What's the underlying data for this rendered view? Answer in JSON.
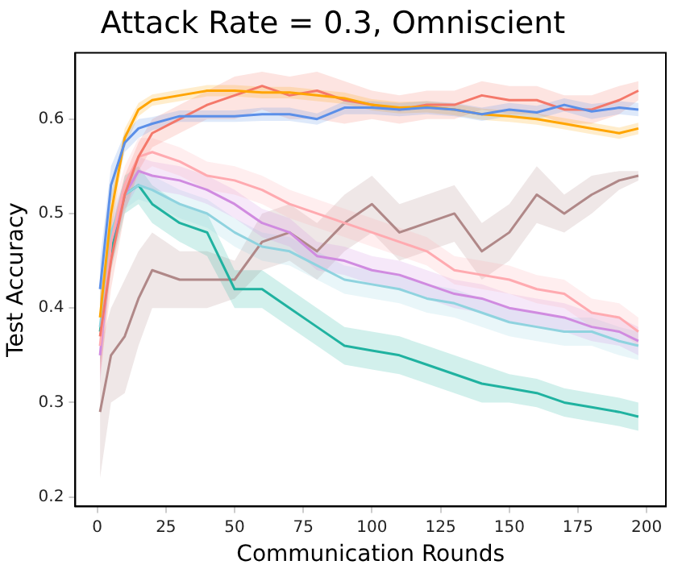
{
  "chart_data": {
    "type": "line",
    "title": "Attack Rate = 0.3, Omniscient",
    "xlabel": "Communication Rounds",
    "ylabel": "Test Accuracy",
    "x": [
      1,
      5,
      10,
      15,
      20,
      30,
      40,
      50,
      60,
      70,
      80,
      90,
      100,
      110,
      120,
      130,
      140,
      150,
      160,
      170,
      180,
      190,
      197
    ],
    "xlim": [
      -8,
      207
    ],
    "ylim": [
      0.19,
      0.67
    ],
    "xticks": [
      0,
      25,
      50,
      75,
      100,
      125,
      150,
      175,
      200
    ],
    "yticks": [
      0.2,
      0.3,
      0.4,
      0.5,
      0.6
    ],
    "grid": false,
    "legend": false,
    "marker": "none",
    "line_style": "solid",
    "series": [
      {
        "color": "#5b8fe8",
        "values": [
          0.42,
          0.53,
          0.575,
          0.59,
          0.595,
          0.603,
          0.603,
          0.603,
          0.605,
          0.605,
          0.6,
          0.612,
          0.612,
          0.61,
          0.612,
          0.61,
          0.605,
          0.61,
          0.607,
          0.615,
          0.608,
          0.612,
          0.61
        ],
        "lower": [
          0.39,
          0.51,
          0.565,
          0.58,
          0.588,
          0.597,
          0.597,
          0.597,
          0.598,
          0.598,
          0.594,
          0.605,
          0.605,
          0.603,
          0.605,
          0.603,
          0.598,
          0.603,
          0.6,
          0.608,
          0.6,
          0.605,
          0.603
        ],
        "upper": [
          0.45,
          0.55,
          0.585,
          0.6,
          0.602,
          0.609,
          0.609,
          0.609,
          0.612,
          0.612,
          0.606,
          0.619,
          0.619,
          0.617,
          0.619,
          0.617,
          0.612,
          0.617,
          0.614,
          0.622,
          0.616,
          0.619,
          0.617
        ]
      },
      {
        "color": "#ffa500",
        "values": [
          0.39,
          0.5,
          0.58,
          0.61,
          0.62,
          0.625,
          0.63,
          0.63,
          0.628,
          0.628,
          0.625,
          0.622,
          0.615,
          0.612,
          0.613,
          0.61,
          0.605,
          0.603,
          0.6,
          0.595,
          0.59,
          0.585,
          0.59
        ],
        "lower": [
          0.36,
          0.48,
          0.57,
          0.603,
          0.614,
          0.619,
          0.624,
          0.624,
          0.622,
          0.622,
          0.619,
          0.616,
          0.609,
          0.606,
          0.607,
          0.604,
          0.599,
          0.597,
          0.594,
          0.589,
          0.584,
          0.579,
          0.584
        ],
        "upper": [
          0.42,
          0.52,
          0.59,
          0.617,
          0.626,
          0.631,
          0.636,
          0.636,
          0.634,
          0.634,
          0.631,
          0.628,
          0.621,
          0.618,
          0.619,
          0.616,
          0.611,
          0.609,
          0.606,
          0.601,
          0.596,
          0.591,
          0.596
        ]
      },
      {
        "color": "#f4786a",
        "values": [
          0.37,
          0.45,
          0.52,
          0.56,
          0.585,
          0.6,
          0.615,
          0.625,
          0.635,
          0.625,
          0.63,
          0.62,
          0.615,
          0.61,
          0.615,
          0.615,
          0.625,
          0.62,
          0.62,
          0.61,
          0.61,
          0.62,
          0.63
        ],
        "lower": [
          0.33,
          0.42,
          0.5,
          0.545,
          0.57,
          0.585,
          0.6,
          0.6,
          0.61,
          0.6,
          0.6,
          0.595,
          0.6,
          0.595,
          0.6,
          0.6,
          0.61,
          0.605,
          0.605,
          0.595,
          0.595,
          0.605,
          0.62
        ],
        "upper": [
          0.41,
          0.48,
          0.54,
          0.575,
          0.6,
          0.615,
          0.63,
          0.645,
          0.65,
          0.645,
          0.65,
          0.64,
          0.63,
          0.625,
          0.63,
          0.63,
          0.64,
          0.635,
          0.635,
          0.625,
          0.625,
          0.635,
          0.64
        ]
      },
      {
        "color": "#ffaab0",
        "values": [
          0.36,
          0.47,
          0.53,
          0.56,
          0.565,
          0.555,
          0.54,
          0.535,
          0.525,
          0.51,
          0.5,
          0.49,
          0.48,
          0.47,
          0.46,
          0.44,
          0.435,
          0.43,
          0.42,
          0.415,
          0.395,
          0.39,
          0.375
        ],
        "lower": [
          0.32,
          0.44,
          0.51,
          0.54,
          0.55,
          0.54,
          0.525,
          0.52,
          0.51,
          0.495,
          0.485,
          0.475,
          0.465,
          0.455,
          0.445,
          0.425,
          0.42,
          0.415,
          0.405,
          0.4,
          0.38,
          0.375,
          0.36
        ],
        "upper": [
          0.4,
          0.5,
          0.55,
          0.58,
          0.58,
          0.57,
          0.555,
          0.55,
          0.54,
          0.525,
          0.515,
          0.505,
          0.495,
          0.485,
          0.475,
          0.455,
          0.45,
          0.445,
          0.435,
          0.43,
          0.41,
          0.405,
          0.39
        ]
      },
      {
        "color": "#d08be0",
        "values": [
          0.35,
          0.47,
          0.52,
          0.545,
          0.54,
          0.535,
          0.525,
          0.51,
          0.49,
          0.48,
          0.455,
          0.45,
          0.44,
          0.435,
          0.425,
          0.415,
          0.41,
          0.4,
          0.395,
          0.39,
          0.38,
          0.375,
          0.365
        ],
        "lower": [
          0.32,
          0.45,
          0.505,
          0.53,
          0.525,
          0.52,
          0.51,
          0.495,
          0.475,
          0.465,
          0.44,
          0.435,
          0.425,
          0.42,
          0.41,
          0.4,
          0.395,
          0.385,
          0.38,
          0.375,
          0.365,
          0.36,
          0.35
        ],
        "upper": [
          0.38,
          0.49,
          0.535,
          0.56,
          0.555,
          0.55,
          0.54,
          0.525,
          0.505,
          0.495,
          0.47,
          0.465,
          0.455,
          0.45,
          0.44,
          0.43,
          0.425,
          0.415,
          0.41,
          0.405,
          0.395,
          0.39,
          0.38
        ]
      },
      {
        "color": "#8fd3df",
        "values": [
          0.38,
          0.48,
          0.52,
          0.53,
          0.525,
          0.51,
          0.5,
          0.48,
          0.465,
          0.46,
          0.445,
          0.43,
          0.425,
          0.42,
          0.41,
          0.405,
          0.395,
          0.385,
          0.38,
          0.375,
          0.375,
          0.365,
          0.36
        ],
        "lower": [
          0.35,
          0.46,
          0.505,
          0.515,
          0.51,
          0.495,
          0.485,
          0.465,
          0.45,
          0.445,
          0.43,
          0.415,
          0.41,
          0.405,
          0.395,
          0.39,
          0.38,
          0.37,
          0.365,
          0.36,
          0.36,
          0.35,
          0.345
        ],
        "upper": [
          0.41,
          0.5,
          0.535,
          0.545,
          0.54,
          0.525,
          0.515,
          0.495,
          0.48,
          0.475,
          0.46,
          0.445,
          0.44,
          0.435,
          0.425,
          0.42,
          0.41,
          0.4,
          0.395,
          0.39,
          0.39,
          0.38,
          0.375
        ]
      },
      {
        "color": "#20b2a0",
        "values": [
          0.375,
          0.46,
          0.52,
          0.53,
          0.51,
          0.49,
          0.48,
          0.42,
          0.42,
          0.4,
          0.38,
          0.36,
          0.355,
          0.35,
          0.34,
          0.33,
          0.32,
          0.315,
          0.31,
          0.3,
          0.295,
          0.29,
          0.285
        ],
        "lower": [
          0.34,
          0.44,
          0.5,
          0.51,
          0.49,
          0.47,
          0.455,
          0.4,
          0.4,
          0.38,
          0.36,
          0.34,
          0.335,
          0.33,
          0.32,
          0.31,
          0.3,
          0.3,
          0.295,
          0.285,
          0.28,
          0.275,
          0.27
        ],
        "upper": [
          0.4,
          0.48,
          0.54,
          0.55,
          0.53,
          0.51,
          0.5,
          0.44,
          0.44,
          0.42,
          0.4,
          0.38,
          0.375,
          0.37,
          0.36,
          0.35,
          0.34,
          0.33,
          0.325,
          0.315,
          0.31,
          0.305,
          0.3
        ]
      },
      {
        "color": "#b08888",
        "values": [
          0.29,
          0.35,
          0.37,
          0.41,
          0.44,
          0.43,
          0.43,
          0.43,
          0.47,
          0.48,
          0.46,
          0.49,
          0.51,
          0.48,
          0.49,
          0.5,
          0.46,
          0.48,
          0.52,
          0.5,
          0.52,
          0.535,
          0.54
        ],
        "lower": [
          0.22,
          0.3,
          0.31,
          0.36,
          0.4,
          0.4,
          0.4,
          0.41,
          0.44,
          0.45,
          0.43,
          0.46,
          0.48,
          0.45,
          0.46,
          0.47,
          0.43,
          0.45,
          0.49,
          0.48,
          0.5,
          0.525,
          0.535
        ],
        "upper": [
          0.36,
          0.4,
          0.43,
          0.46,
          0.48,
          0.46,
          0.46,
          0.45,
          0.5,
          0.51,
          0.49,
          0.52,
          0.54,
          0.51,
          0.52,
          0.53,
          0.49,
          0.51,
          0.55,
          0.52,
          0.54,
          0.545,
          0.545
        ]
      }
    ]
  }
}
